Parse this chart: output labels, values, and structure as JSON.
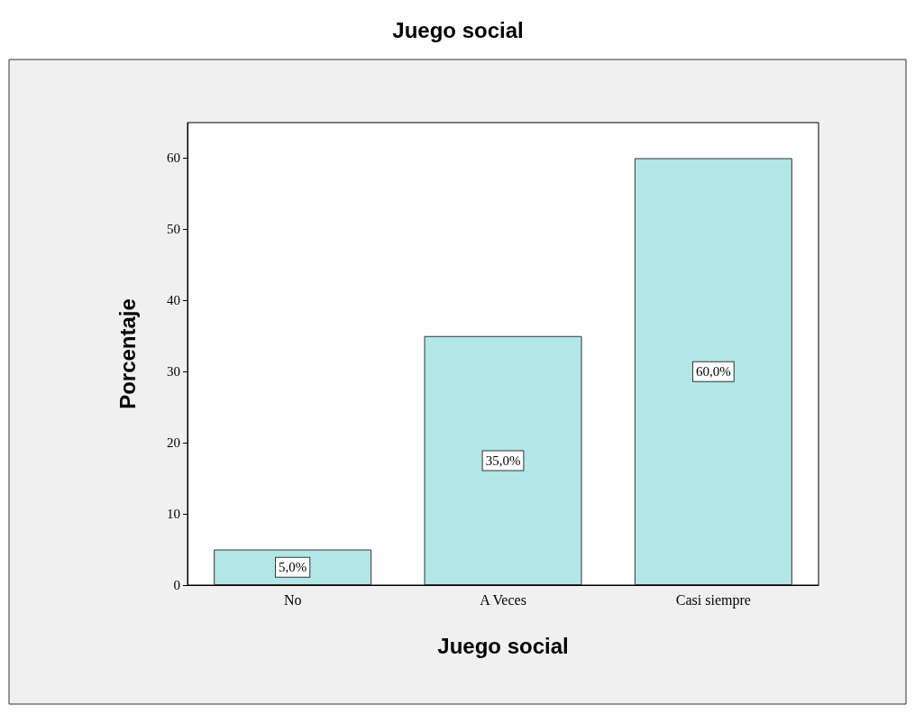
{
  "chart_data": {
    "type": "bar",
    "title": "Juego social",
    "xlabel": "Juego social",
    "ylabel": "Porcentaje",
    "categories": [
      "No",
      "A Veces",
      "Casi siempre"
    ],
    "values": [
      5,
      35,
      60
    ],
    "value_labels": [
      "5,0%",
      "35,0%",
      "60,0%"
    ],
    "color": "#b3e6e6",
    "ylim": [
      0,
      65
    ],
    "yticks": [
      0,
      10,
      20,
      30,
      40,
      50,
      60
    ],
    "grid": false
  }
}
